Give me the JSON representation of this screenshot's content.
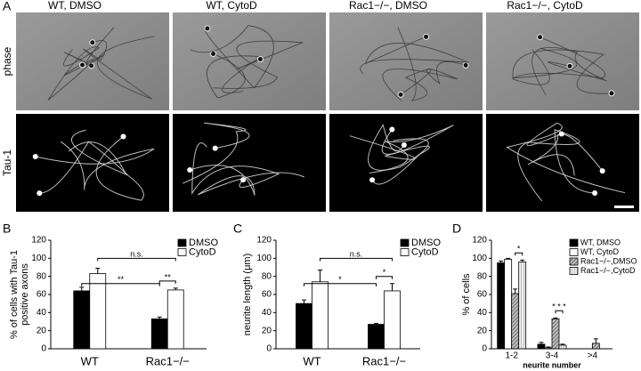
{
  "figure": {
    "panels": [
      "A",
      "B",
      "C",
      "D"
    ],
    "columns": [
      "WT, DMSO",
      "WT, CytoD",
      "Rac1−/−, DMSO",
      "Rac1−/−, CytoD"
    ],
    "rows": [
      "phase",
      "Tau-1"
    ]
  },
  "chart_data": [
    {
      "type": "bar",
      "ylabel": [
        "% of cells with Tau-1",
        "positive axons"
      ],
      "categories": [
        "WT",
        "Rac1−/−"
      ],
      "series": [
        {
          "name": "DMSO",
          "color": "#000000",
          "values": [
            64,
            33
          ],
          "errors": [
            4,
            2
          ]
        },
        {
          "name": "CytoD",
          "color": "#ffffff",
          "values": [
            83,
            65
          ],
          "errors": [
            6,
            2
          ]
        }
      ],
      "ylim": [
        0,
        120
      ],
      "yticks": [
        0,
        20,
        40,
        60,
        80,
        100,
        120
      ],
      "annotations": [
        "**",
        "n.s.",
        "**"
      ]
    },
    {
      "type": "bar",
      "ylabel": [
        "neurite length (μm)"
      ],
      "categories": [
        "WT",
        "Rac1−/−"
      ],
      "series": [
        {
          "name": "DMSO",
          "color": "#000000",
          "values": [
            50,
            27
          ],
          "errors": [
            4,
            1
          ]
        },
        {
          "name": "CytoD",
          "color": "#ffffff",
          "values": [
            74,
            64
          ],
          "errors": [
            13,
            8
          ]
        }
      ],
      "ylim": [
        0,
        120
      ],
      "yticks": [
        0,
        20,
        40,
        60,
        80,
        100,
        120
      ],
      "annotations": [
        "*",
        "n.s.",
        "*"
      ]
    },
    {
      "type": "bar",
      "ylabel": [
        "% of cells"
      ],
      "xlabel": "neurite number",
      "categories": [
        "1-2",
        "3-4",
        ">4"
      ],
      "series": [
        {
          "name": "WT, DMSO",
          "color": "#000000",
          "values": [
            95,
            5,
            0
          ],
          "errors": [
            2,
            2,
            0
          ]
        },
        {
          "name": "WT, CytoD",
          "color": "#ffffff",
          "values": [
            99,
            1,
            0
          ],
          "errors": [
            1,
            1,
            0
          ]
        },
        {
          "name": "Rac1−/−,DMSO",
          "color": "#999999",
          "values": [
            61,
            33,
            6
          ],
          "errors": [
            5,
            1,
            5
          ]
        },
        {
          "name": "Rac1−/−,CytoD",
          "color": "#dddddd",
          "values": [
            96,
            4,
            0
          ],
          "errors": [
            2,
            1,
            0
          ]
        }
      ],
      "ylim": [
        0,
        120
      ],
      "yticks": [
        0,
        20,
        40,
        60,
        80,
        100,
        120
      ],
      "annotations": [
        "*",
        "* * *"
      ]
    }
  ]
}
